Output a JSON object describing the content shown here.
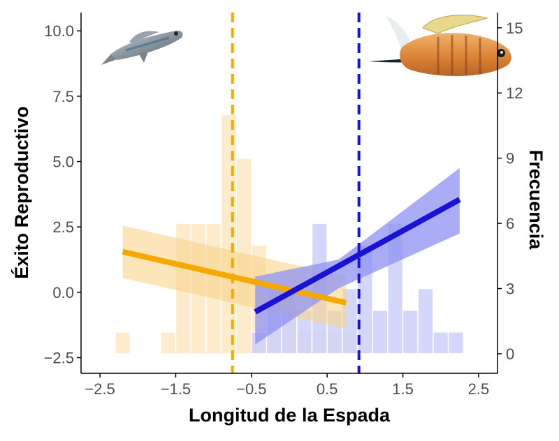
{
  "chart_data": {
    "type": "histogram+line",
    "xlabel": "Longitud de la Espada",
    "ylabel_left": "Éxito Reproductivo",
    "ylabel_right": "Frecuencia",
    "xlim": [
      -2.75,
      2.75
    ],
    "ylim_left": [
      -3.1,
      10.7
    ],
    "ylim_right": [
      -0.9,
      15.7
    ],
    "x_ticks": [
      -2.5,
      -1.5,
      -0.5,
      0.5,
      1.5,
      2.5
    ],
    "x_tick_labels": [
      "−2.5",
      "−1.5",
      "−0.5",
      "0.5",
      "1.5",
      "2.5"
    ],
    "y_left_ticks": [
      -2.5,
      0.0,
      2.5,
      5.0,
      7.5,
      10.0
    ],
    "y_left_tick_labels": [
      "−2.5",
      "0.0",
      "2.5",
      "5.0",
      "7.5",
      "10.0"
    ],
    "y_right_ticks": [
      0,
      3,
      6,
      9,
      12,
      15
    ],
    "y_right_tick_labels": [
      "0",
      "3",
      "6",
      "9",
      "12",
      "15"
    ],
    "grid": false,
    "bin_width": 0.2,
    "series": [
      {
        "color": "#f5a800",
        "bar_color": "#fde9c3",
        "band_color": "#f9d38a",
        "histogram": {
          "bin_starts": [
            -2.3,
            -1.7,
            -1.5,
            -1.3,
            -1.1,
            -0.9,
            -0.7,
            -0.5,
            -0.3,
            -0.1,
            0.1,
            0.3,
            0.5,
            0.7
          ],
          "counts": [
            1,
            1,
            6,
            6,
            6,
            11,
            9,
            5,
            3,
            3,
            1,
            1,
            1,
            1
          ]
        },
        "mean_line_x": -0.75,
        "fit": {
          "x": [
            -2.2,
            0.75
          ],
          "y": [
            1.55,
            -0.4
          ]
        },
        "ci_band": {
          "x": [
            -2.2,
            0.75
          ],
          "lower": [
            0.55,
            -1.4
          ],
          "upper": [
            2.55,
            0.6
          ]
        }
      },
      {
        "color": "#1a12d4",
        "bar_color": "#cdd0fa",
        "band_color": "#8e92f3",
        "histogram": {
          "bin_starts": [
            -0.5,
            -0.3,
            -0.1,
            0.1,
            0.3,
            0.5,
            0.7,
            0.9,
            1.1,
            1.3,
            1.5,
            1.7,
            1.9,
            2.1
          ],
          "counts": [
            1,
            3,
            2,
            2,
            6,
            2,
            3,
            5,
            2,
            6,
            2,
            3,
            1,
            1
          ]
        },
        "mean_line_x": 0.92,
        "fit": {
          "x": [
            -0.45,
            2.25
          ],
          "y": [
            -0.75,
            3.55
          ]
        },
        "ci_band": {
          "x": [
            -0.45,
            0.65,
            2.25
          ],
          "lower": [
            -2.0,
            0.15,
            2.25
          ],
          "upper": [
            0.6,
            1.25,
            4.75
          ]
        }
      }
    ],
    "images": [
      {
        "name": "gray-fish-icon",
        "description": "small silver fish photograph (top-left)"
      },
      {
        "name": "orange-fish-icon",
        "description": "swordtail fish photograph (top-right)"
      }
    ]
  }
}
